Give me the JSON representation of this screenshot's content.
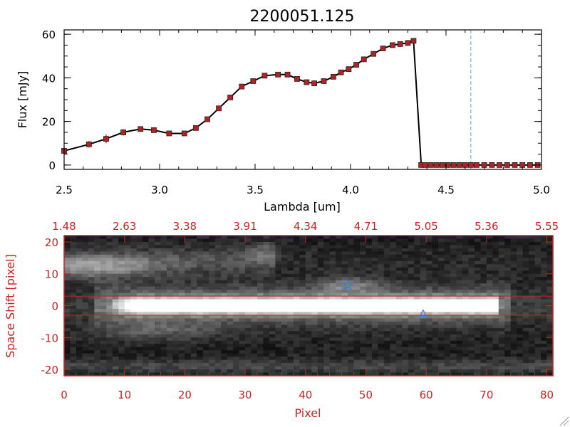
{
  "chart_data": [
    {
      "type": "line",
      "title": "2200051.125",
      "xlabel": "Lambda [um]",
      "ylabel": "Flux [mJy]",
      "xlim": [
        2.5,
        5.0
      ],
      "ylim": [
        -2,
        62
      ],
      "x_ticks": [
        "2.5",
        "3.0",
        "3.5",
        "4.0",
        "4.5",
        "5.0"
      ],
      "y_ticks": [
        "0",
        "20",
        "40",
        "60"
      ],
      "marker_color": "#b22222",
      "line_color": "#000000",
      "vline": {
        "x": 4.63,
        "color": "#5aa0d8",
        "style": "dashed"
      },
      "zero_line_color": "#cc2222",
      "series": [
        {
          "x": [
            2.5,
            2.63,
            2.72,
            2.81,
            2.9,
            2.97,
            3.05,
            3.13,
            3.19,
            3.25,
            3.31,
            3.37,
            3.43,
            3.49,
            3.55,
            3.62,
            3.67,
            3.72,
            3.77,
            3.81,
            3.86,
            3.91,
            3.95,
            3.99,
            4.03,
            4.07,
            4.12,
            4.17,
            4.22,
            4.26,
            4.3,
            4.33,
            4.37,
            4.39,
            4.42,
            4.45,
            4.48,
            4.51,
            4.54,
            4.57,
            4.6,
            4.63,
            4.66,
            4.7,
            4.74,
            4.78,
            4.82,
            4.86,
            4.9,
            4.94,
            4.98
          ],
          "y": [
            6.5,
            9.5,
            12,
            15,
            16.5,
            16,
            14.5,
            14.5,
            17,
            21,
            26,
            31,
            36,
            38.5,
            41,
            41.5,
            41.5,
            39.5,
            38,
            37.5,
            38.5,
            40.5,
            42.5,
            44,
            46,
            48.5,
            51,
            53.5,
            55,
            55.5,
            56,
            57,
            0,
            0,
            0,
            0,
            0,
            0,
            0,
            0,
            0,
            0,
            0,
            0,
            0,
            0,
            0,
            0,
            0,
            0,
            0
          ],
          "err": [
            1.2,
            1.5,
            2,
            1.5,
            1.2,
            1,
            1,
            1,
            1.2,
            1,
            1,
            1,
            1,
            1,
            1,
            1,
            1,
            1,
            1,
            1,
            1,
            1,
            1,
            1,
            1,
            1,
            1,
            1,
            1,
            1,
            1,
            1,
            0.5,
            0.5,
            0.5,
            0.5,
            0.5,
            0.5,
            0.5,
            0.5,
            0.5,
            0.5,
            0.5,
            0.5,
            0.5,
            0.5,
            0.5,
            0.5,
            0.5,
            0.5,
            0.5
          ]
        }
      ]
    },
    {
      "type": "heatmap",
      "xlabel": "Pixel",
      "ylabel": "Space Shift [pixel]",
      "xlim": [
        0,
        81
      ],
      "ylim": [
        -22,
        22
      ],
      "x_ticks": [
        "0",
        "10",
        "20",
        "30",
        "40",
        "50",
        "60",
        "70",
        "80"
      ],
      "y_ticks": [
        "-20",
        "-10",
        "0",
        "10",
        "20"
      ],
      "top_ticks": [
        "1.48",
        "2.63",
        "3.38",
        "3.91",
        "4.34",
        "4.71",
        "5.05",
        "5.36",
        "5.55"
      ],
      "axis_color": "#cc2222",
      "colormap": "grayscale",
      "hlines": [
        3,
        -3
      ],
      "markers": [
        {
          "shape": "star",
          "x": 47,
          "y": 6.5,
          "color": "#3a7ae0"
        },
        {
          "shape": "triangle",
          "x": 59.5,
          "y": -2.5,
          "color": "#3a7ae0"
        }
      ]
    }
  ]
}
